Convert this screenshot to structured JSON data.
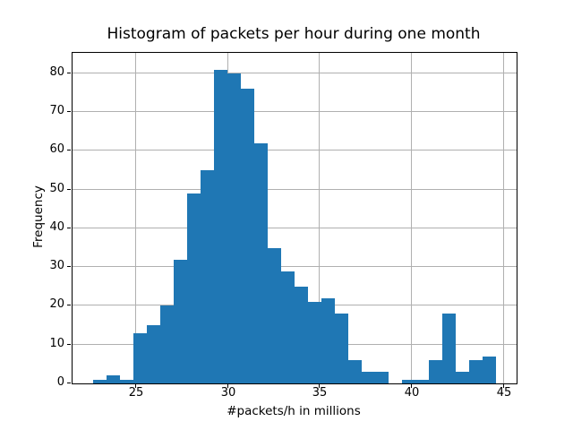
{
  "figure": {
    "background": "#ffffff"
  },
  "chart_data": {
    "type": "bar",
    "subtype": "histogram",
    "title": "Histogram of packets per hour during one month",
    "xlabel": "#packets/h in millions",
    "ylabel": "Frequency",
    "bin_start": 22.65,
    "bin_width": 0.7315,
    "frequencies": [
      1,
      2,
      1,
      13,
      15,
      20,
      32,
      49,
      55,
      81,
      80,
      76,
      62,
      35,
      29,
      25,
      21,
      22,
      18,
      6,
      3,
      3,
      0,
      1,
      1,
      6,
      18,
      3,
      6,
      7
    ],
    "x_ticks": [
      25,
      30,
      35,
      40,
      45
    ],
    "y_ticks": [
      0,
      10,
      20,
      30,
      40,
      50,
      60,
      70,
      80
    ],
    "xlim": [
      21.55,
      45.7
    ],
    "ylim": [
      0,
      85.3
    ],
    "grid": true,
    "legend": null,
    "bar_color": "#1f77b4",
    "grid_color": "#b0b0b0",
    "axis_color": "#000000",
    "text_color": "#000000"
  }
}
